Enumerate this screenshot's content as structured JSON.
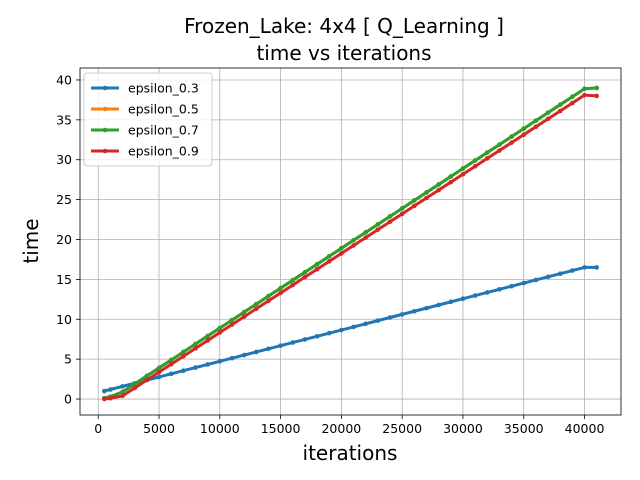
{
  "chart_data": {
    "type": "line",
    "title": "Frozen_Lake: 4x4 [ Q_Learning ]",
    "subtitle": "time vs iterations",
    "xlabel": "iterations",
    "ylabel": "time",
    "xlim": [
      -1500,
      43000
    ],
    "ylim": [
      -2,
      41.5
    ],
    "xticks": [
      0,
      5000,
      10000,
      15000,
      20000,
      25000,
      30000,
      35000,
      40000
    ],
    "yticks": [
      0,
      5,
      10,
      15,
      20,
      25,
      30,
      35,
      40
    ],
    "grid": true,
    "legend_position": "upper-left",
    "series": [
      {
        "name": "epsilon_0.3",
        "color": "#1f77b4",
        "points": [
          [
            500,
            1.0
          ],
          [
            40000,
            16.5
          ],
          [
            41000,
            16.5
          ]
        ]
      },
      {
        "name": "epsilon_0.5",
        "color": "#ff7f0e",
        "points": [
          [
            500,
            0.1
          ],
          [
            1000,
            0.3
          ],
          [
            2000,
            0.9
          ],
          [
            40000,
            38.9
          ],
          [
            41000,
            39.0
          ]
        ]
      },
      {
        "name": "epsilon_0.7",
        "color": "#2ca02c",
        "points": [
          [
            500,
            0.1
          ],
          [
            1000,
            0.3
          ],
          [
            2000,
            0.9
          ],
          [
            40000,
            38.9
          ],
          [
            41000,
            39.0
          ]
        ]
      },
      {
        "name": "epsilon_0.9",
        "color": "#d62728",
        "points": [
          [
            500,
            0.0
          ],
          [
            1000,
            0.1
          ],
          [
            2000,
            0.4
          ],
          [
            40000,
            38.1
          ],
          [
            41000,
            38.0
          ]
        ]
      }
    ]
  }
}
